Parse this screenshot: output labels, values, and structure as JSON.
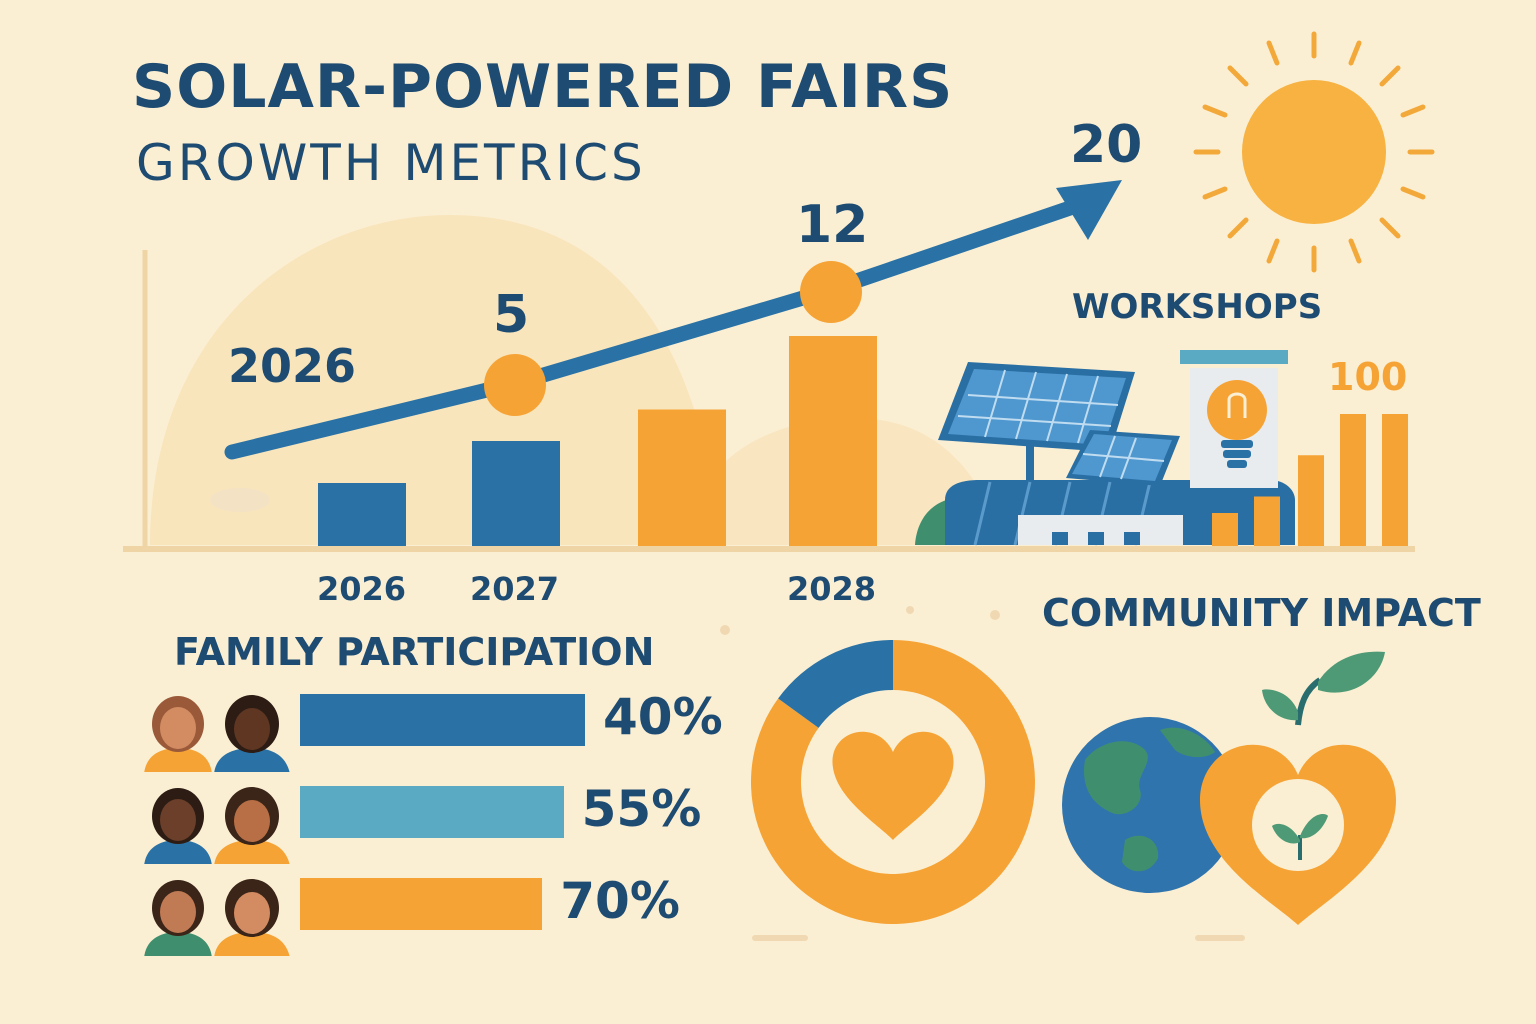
{
  "header": {
    "title": "SOLAR-POWERED FAIRS",
    "subtitle": "GROWTH METRICS"
  },
  "colors": {
    "navy": "#1e4b72",
    "blue": "#2a72a6",
    "light_blue": "#5aaac4",
    "orange": "#f6a335",
    "background": "#fbefd3"
  },
  "chart_data": [
    {
      "type": "bar",
      "title": "",
      "categories": [
        "2026",
        "2027",
        "",
        "2028"
      ],
      "values": [
        3,
        5,
        6.5,
        10
      ],
      "bar_colors": [
        "blue",
        "blue",
        "orange",
        "orange"
      ],
      "line_labels": [
        {
          "x": "2026",
          "label": "2026"
        },
        {
          "x": "2027",
          "label": "5"
        },
        {
          "x": "2028",
          "label": "12"
        },
        {
          "x": "end",
          "label": "20"
        }
      ],
      "trend_arrow": true,
      "grid": false
    },
    {
      "type": "bar",
      "title": "WORKSHOPS",
      "annotation": "100",
      "values": [
        2,
        3,
        5.5,
        8,
        8
      ],
      "bar_color": "orange"
    },
    {
      "type": "bar",
      "orientation": "horizontal",
      "title": "FAMILY PARTICIPATION",
      "categories": [
        "row-1",
        "row-2",
        "row-3"
      ],
      "values": [
        40,
        55,
        70
      ],
      "labels": [
        "40%",
        "55%",
        "70%"
      ],
      "bar_colors": [
        "blue",
        "light_blue",
        "orange"
      ]
    },
    {
      "type": "pie",
      "title": "COMMUNITY IMPACT",
      "slices": [
        {
          "color": "orange",
          "value": 85
        },
        {
          "color": "blue",
          "value": 15
        }
      ],
      "center_icon": "heart-icon"
    }
  ],
  "icons": [
    "sun-icon",
    "solar-panel-icon",
    "light-bulb-icon",
    "factory-icon",
    "earth-icon",
    "heart-sprout-icon",
    "family-avatar-icon",
    "heart-icon"
  ]
}
